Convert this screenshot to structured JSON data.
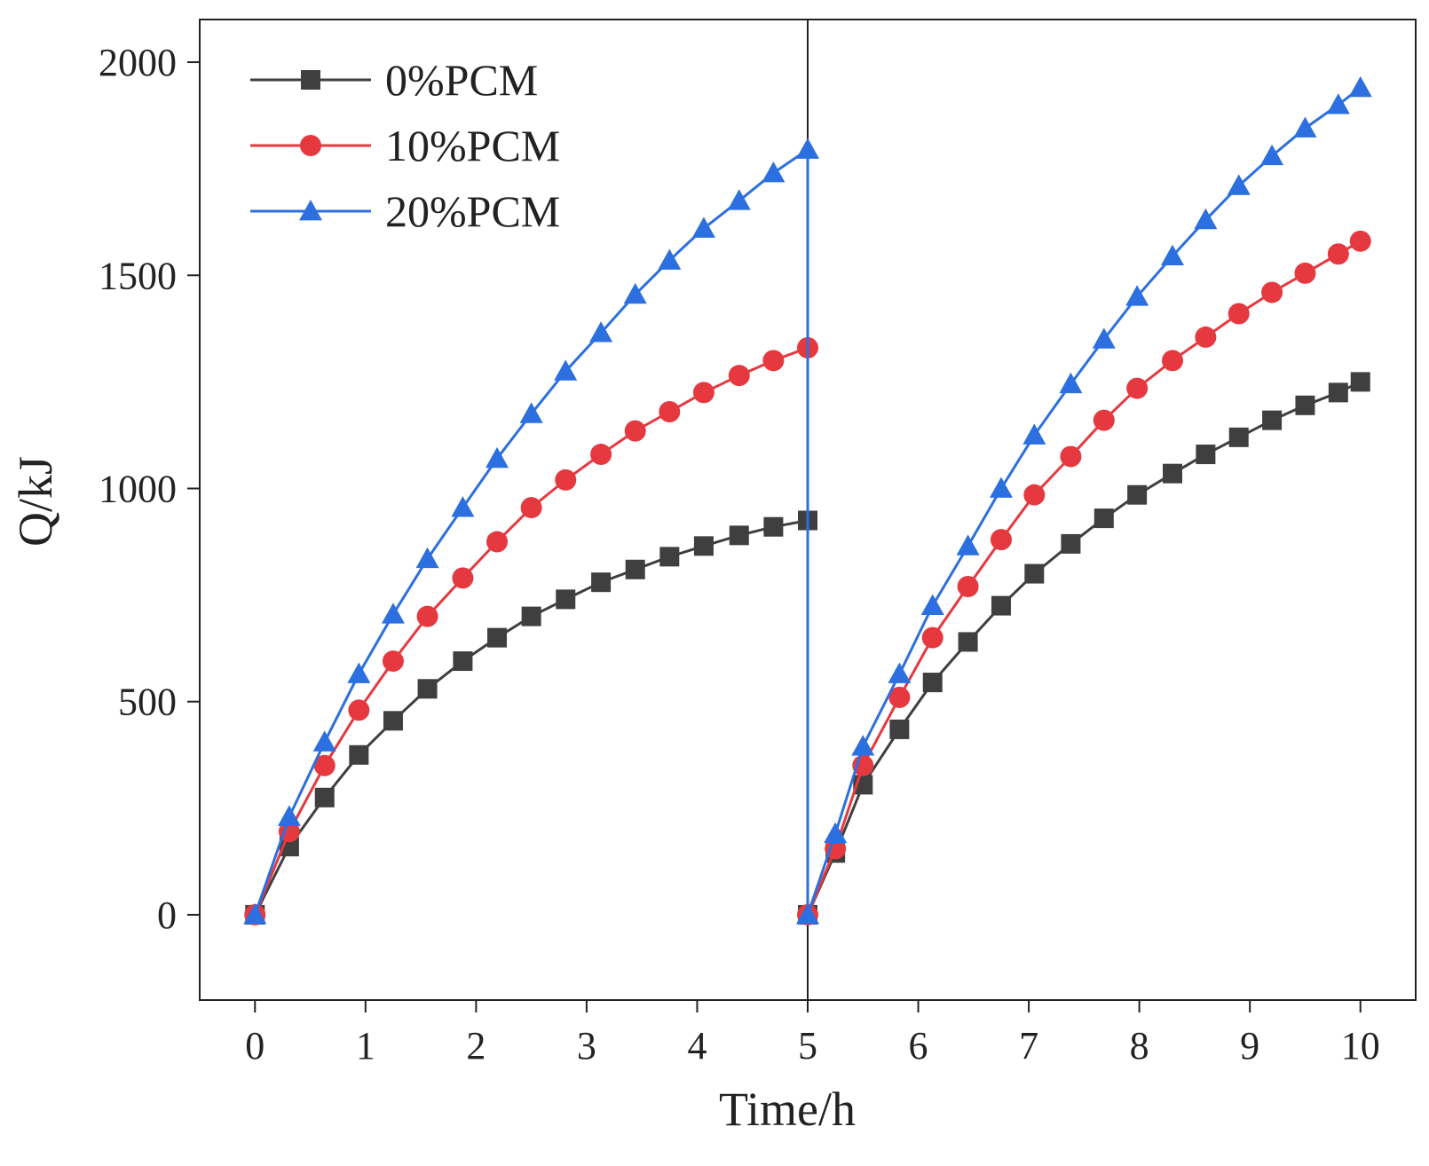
{
  "chart_data": {
    "type": "line",
    "title": "",
    "xlabel": "Time/h",
    "ylabel": "Q/kJ",
    "xlim": [
      -0.5,
      10.5
    ],
    "ylim": [
      -200,
      2100
    ],
    "xticks": [
      0,
      1,
      2,
      3,
      4,
      5,
      6,
      7,
      8,
      9,
      10
    ],
    "yticks": [
      0,
      500,
      1000,
      1500,
      2000
    ],
    "grid": false,
    "legend_position": "top-left",
    "reference_lines": [
      {
        "axis": "x",
        "value": 5,
        "color": "#222222"
      }
    ],
    "series": [
      {
        "name": "0%PCM",
        "color": "#3f3f3f",
        "marker": "square",
        "x": [
          0,
          0.31,
          0.63,
          0.94,
          1.25,
          1.56,
          1.88,
          2.19,
          2.5,
          2.81,
          3.13,
          3.44,
          3.75,
          4.06,
          4.38,
          4.69,
          5.0,
          5.0,
          5.25,
          5.5,
          5.83,
          6.13,
          6.45,
          6.75,
          7.05,
          7.38,
          7.68,
          7.98,
          8.3,
          8.6,
          8.9,
          9.2,
          9.5,
          9.8,
          10.0
        ],
        "values": [
          0,
          160,
          275,
          375,
          455,
          530,
          595,
          650,
          700,
          740,
          780,
          810,
          840,
          865,
          890,
          910,
          925,
          0,
          145,
          305,
          435,
          545,
          640,
          725,
          800,
          870,
          930,
          985,
          1035,
          1080,
          1120,
          1160,
          1195,
          1225,
          1250
        ]
      },
      {
        "name": "10%PCM",
        "color": "#e5393f",
        "marker": "circle",
        "x": [
          0,
          0.31,
          0.63,
          0.94,
          1.25,
          1.56,
          1.88,
          2.19,
          2.5,
          2.81,
          3.13,
          3.44,
          3.75,
          4.06,
          4.38,
          4.69,
          5.0,
          5.0,
          5.25,
          5.5,
          5.83,
          6.13,
          6.45,
          6.75,
          7.05,
          7.38,
          7.68,
          7.98,
          8.3,
          8.6,
          8.9,
          9.2,
          9.5,
          9.8,
          10.0
        ],
        "values": [
          0,
          195,
          350,
          480,
          595,
          700,
          790,
          875,
          955,
          1020,
          1080,
          1135,
          1180,
          1225,
          1265,
          1300,
          1330,
          0,
          155,
          350,
          510,
          650,
          770,
          880,
          985,
          1075,
          1160,
          1235,
          1300,
          1355,
          1410,
          1460,
          1505,
          1550,
          1580
        ]
      },
      {
        "name": "20%PCM",
        "color": "#2c6fe0",
        "marker": "triangle",
        "x": [
          0,
          0.31,
          0.63,
          0.94,
          1.25,
          1.56,
          1.88,
          2.19,
          2.5,
          2.81,
          3.13,
          3.44,
          3.75,
          4.06,
          4.38,
          4.69,
          5.0,
          5.0,
          5.25,
          5.5,
          5.83,
          6.13,
          6.45,
          6.75,
          7.05,
          7.38,
          7.68,
          7.98,
          8.3,
          8.6,
          8.9,
          9.2,
          9.5,
          9.8,
          10.0
        ],
        "values": [
          0,
          230,
          405,
          565,
          705,
          835,
          955,
          1070,
          1175,
          1275,
          1365,
          1455,
          1535,
          1610,
          1675,
          1740,
          1795,
          0,
          190,
          395,
          565,
          725,
          865,
          1000,
          1125,
          1245,
          1350,
          1450,
          1545,
          1630,
          1710,
          1780,
          1845,
          1900,
          1940
        ]
      }
    ]
  }
}
